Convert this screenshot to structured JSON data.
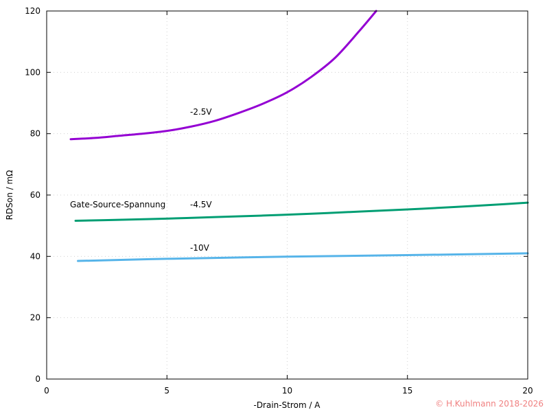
{
  "chart_data": {
    "type": "line",
    "xlabel": "-Drain-Strom / A",
    "ylabel": "RDSon / mΩ",
    "xlim": [
      0,
      20
    ],
    "ylim": [
      0,
      120
    ],
    "x_ticks": [
      0,
      5,
      10,
      15,
      20
    ],
    "y_ticks": [
      0,
      20,
      40,
      60,
      80,
      100,
      120
    ],
    "x_tick_labels": [
      "0",
      "5",
      "10",
      "15",
      "20"
    ],
    "y_tick_labels": [
      "0",
      "20",
      "40",
      "60",
      "80",
      "100",
      "120"
    ],
    "grid": true,
    "legend_title": "Gate-Source-Spannung",
    "series": [
      {
        "name": "-2.5V",
        "color": "#9400d3",
        "points": [
          [
            1.0,
            78.2
          ],
          [
            2.0,
            78.6
          ],
          [
            3.0,
            79.3
          ],
          [
            4.0,
            80.0
          ],
          [
            5.0,
            80.9
          ],
          [
            6.0,
            82.3
          ],
          [
            7.0,
            84.2
          ],
          [
            8.0,
            86.8
          ],
          [
            9.0,
            89.8
          ],
          [
            10.0,
            93.5
          ],
          [
            11.0,
            98.5
          ],
          [
            12.0,
            104.8
          ],
          [
            13.0,
            113.5
          ],
          [
            13.7,
            120.0
          ]
        ]
      },
      {
        "name": "-4.5V",
        "color": "#009e73",
        "points": [
          [
            1.2,
            51.6
          ],
          [
            3.0,
            51.9
          ],
          [
            5.0,
            52.3
          ],
          [
            7.0,
            52.8
          ],
          [
            9.0,
            53.3
          ],
          [
            11.0,
            53.9
          ],
          [
            13.0,
            54.6
          ],
          [
            15.0,
            55.3
          ],
          [
            17.0,
            56.1
          ],
          [
            19.0,
            57.0
          ],
          [
            20.0,
            57.5
          ]
        ]
      },
      {
        "name": "-10V",
        "color": "#56b4e9",
        "points": [
          [
            1.3,
            38.5
          ],
          [
            5.0,
            39.2
          ],
          [
            10.0,
            39.9
          ],
          [
            15.0,
            40.4
          ],
          [
            20.0,
            41.0
          ]
        ]
      }
    ]
  },
  "copyright": "© H.Kuhlmann 2018-2026"
}
